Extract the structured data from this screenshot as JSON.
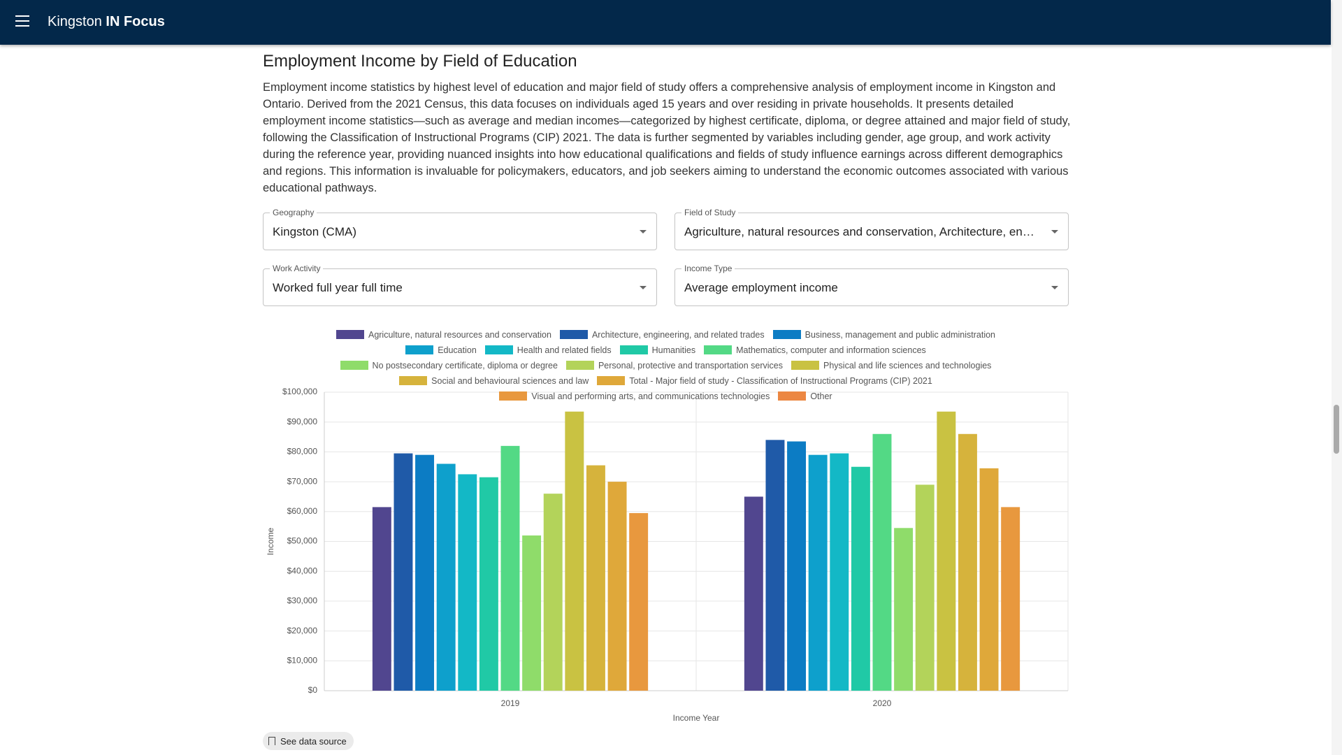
{
  "header": {
    "title_regular": "Kingston",
    "title_bold": "IN Focus"
  },
  "title": "Employment Income by Field of Education",
  "description": "Employment income statistics by highest level of education and major field of study offers a comprehensive analysis of employment income in Kingston and Ontario. Derived from the 2021 Census, this data focuses on individuals aged 15 years and over residing in private households. It presents detailed employment income statistics—such as average and median incomes—categorized by highest certificate, diploma, or degree attained and major field of study, following the Classification of Instructional Programs (CIP) 2021. The data is further segmented by variables including gender, age group, and work activity during the reference year, providing nuanced insights into how educational qualifications and fields of study influence earnings across different demographics and regions. This information is invaluable for policymakers, educators, and job seekers aiming to understand the economic outcomes associated with various educational pathways.",
  "filters": [
    {
      "label": "Geography",
      "value": "Kingston (CMA)"
    },
    {
      "label": "Field of Study",
      "value": "Agriculture, natural resources and conservation, Architecture, engineering, and related trades, Business, management and public administration"
    },
    {
      "label": "Work Activity",
      "value": "Worked full year full time"
    },
    {
      "label": "Income Type",
      "value": "Average employment income"
    }
  ],
  "chart_data": {
    "type": "bar",
    "x_label": "Income Year",
    "y_label": "Income",
    "categories": [
      "2019",
      "2020"
    ],
    "ylim": [
      0,
      100000
    ],
    "yticks": [
      {
        "value": 0,
        "label": "$0"
      },
      {
        "value": 10000,
        "label": "$10,000"
      },
      {
        "value": 20000,
        "label": "$20,000"
      },
      {
        "value": 30000,
        "label": "$30,000"
      },
      {
        "value": 40000,
        "label": "$40,000"
      },
      {
        "value": 50000,
        "label": "$50,000"
      },
      {
        "value": 60000,
        "label": "$60,000"
      },
      {
        "value": 70000,
        "label": "$70,000"
      },
      {
        "value": 80000,
        "label": "$80,000"
      },
      {
        "value": 90000,
        "label": "$90,000"
      },
      {
        "value": 100000,
        "label": "$100,000"
      }
    ],
    "grid": true,
    "series": [
      {
        "name": "Agriculture, natural resources and conservation",
        "color": "#51468f",
        "values": [
          61500,
          65000
        ]
      },
      {
        "name": "Architecture, engineering, and related trades",
        "color": "#1f5aa8",
        "values": [
          79500,
          84000
        ]
      },
      {
        "name": "Business, management and public administration",
        "color": "#0c7cc4",
        "values": [
          79000,
          83500
        ]
      },
      {
        "name": "Education",
        "color": "#0ea0cc",
        "values": [
          76000,
          79000
        ]
      },
      {
        "name": "Health and related fields",
        "color": "#13b8c6",
        "values": [
          72500,
          79500
        ]
      },
      {
        "name": "Humanities",
        "color": "#20c9a6",
        "values": [
          71500,
          75000
        ]
      },
      {
        "name": "Mathematics, computer and information sciences",
        "color": "#53d985",
        "values": [
          82000,
          86000
        ]
      },
      {
        "name": "No postsecondary certificate, diploma or degree",
        "color": "#8fdc6a",
        "values": [
          52000,
          54500
        ]
      },
      {
        "name": "Personal, protective and transportation services",
        "color": "#b3d35a",
        "values": [
          66000,
          69000
        ]
      },
      {
        "name": "Physical and life sciences and technologies",
        "color": "#c9c242",
        "values": [
          93500,
          93500
        ]
      },
      {
        "name": "Social and behavioural sciences and law",
        "color": "#d6b33c",
        "values": [
          75500,
          86000
        ]
      },
      {
        "name": "Total - Major field of study - Classification of Instructional Programs (CIP) 2021",
        "color": "#dfa83a",
        "values": [
          70000,
          74500
        ]
      },
      {
        "name": "Visual and performing arts, and communications technologies",
        "color": "#e8983e",
        "values": [
          59500,
          61500
        ]
      },
      {
        "name": "Other",
        "color": "#ec8742",
        "values": [
          null,
          null
        ]
      }
    ]
  },
  "data_source": "See data source"
}
